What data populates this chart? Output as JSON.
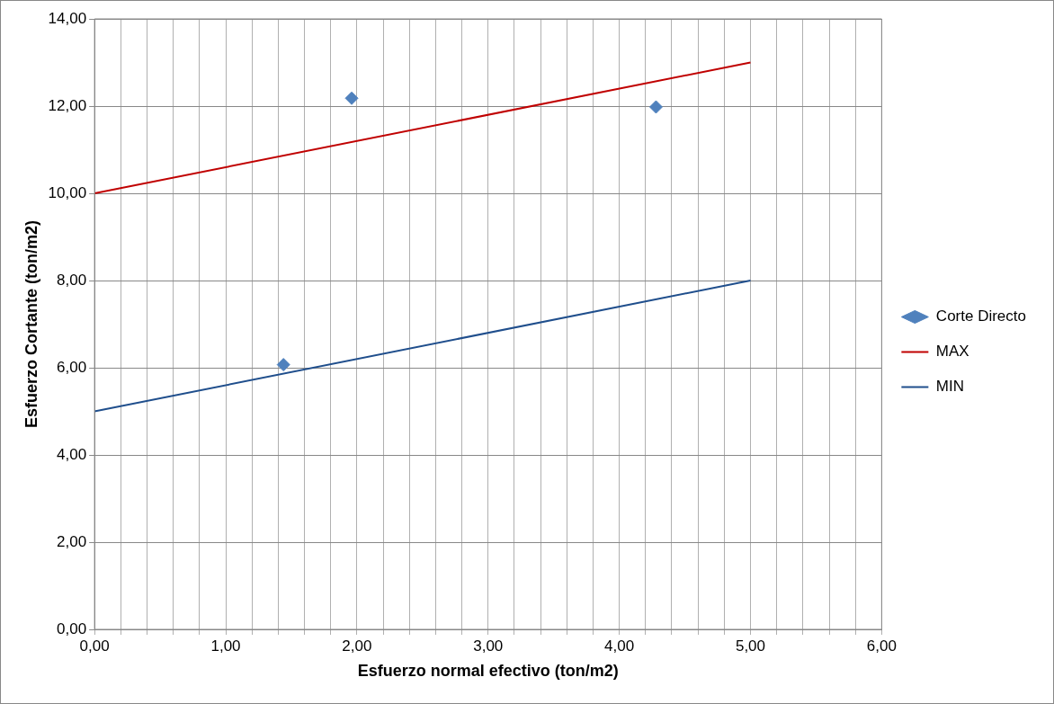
{
  "chart_data": {
    "type": "scatter",
    "xlabel": "Esfuerzo normal efectivo (ton/m2)",
    "ylabel": "Esfuerzo Cortante (ton/m2)",
    "xlim": [
      0,
      6
    ],
    "ylim": [
      0,
      14
    ],
    "xticks": [
      {
        "value": 0,
        "label": "0,00"
      },
      {
        "value": 0.2,
        "label": null
      },
      {
        "value": 0.4,
        "label": null
      },
      {
        "value": 0.6,
        "label": null
      },
      {
        "value": 0.8,
        "label": null
      },
      {
        "value": 1,
        "label": "1,00"
      },
      {
        "value": 1.2,
        "label": null
      },
      {
        "value": 1.4,
        "label": null
      },
      {
        "value": 1.6,
        "label": null
      },
      {
        "value": 1.8,
        "label": null
      },
      {
        "value": 2,
        "label": "2,00"
      },
      {
        "value": 2.2,
        "label": null
      },
      {
        "value": 2.4,
        "label": null
      },
      {
        "value": 2.6,
        "label": null
      },
      {
        "value": 2.8,
        "label": null
      },
      {
        "value": 3,
        "label": "3,00"
      },
      {
        "value": 3.2,
        "label": null
      },
      {
        "value": 3.4,
        "label": null
      },
      {
        "value": 3.6,
        "label": null
      },
      {
        "value": 3.8,
        "label": null
      },
      {
        "value": 4,
        "label": "4,00"
      },
      {
        "value": 4.2,
        "label": null
      },
      {
        "value": 4.4,
        "label": null
      },
      {
        "value": 4.6,
        "label": null
      },
      {
        "value": 4.8,
        "label": null
      },
      {
        "value": 5,
        "label": "5,00"
      },
      {
        "value": 5.2,
        "label": null
      },
      {
        "value": 5.4,
        "label": null
      },
      {
        "value": 5.6,
        "label": null
      },
      {
        "value": 5.8,
        "label": null
      },
      {
        "value": 6,
        "label": "6,00"
      }
    ],
    "yticks": [
      {
        "value": 0,
        "label": "0,00"
      },
      {
        "value": 2,
        "label": "2,00"
      },
      {
        "value": 4,
        "label": "4,00"
      },
      {
        "value": 6,
        "label": "6,00"
      },
      {
        "value": 8,
        "label": "8,00"
      },
      {
        "value": 10,
        "label": "10,00"
      },
      {
        "value": 12,
        "label": "12,00"
      },
      {
        "value": 14,
        "label": "14,00"
      }
    ],
    "grid": true,
    "legend": "right",
    "series": [
      {
        "name": "Corte Directo",
        "type": "scatter",
        "marker": "diamond",
        "color": "#4f81bd",
        "x": [
          1.96,
          4.28,
          1.44
        ],
        "values": [
          12.18,
          11.98,
          6.07
        ]
      },
      {
        "name": "MAX",
        "type": "line",
        "marker": "none",
        "color": "#c00000",
        "x": [
          0,
          5
        ],
        "values": [
          10,
          13
        ]
      },
      {
        "name": "MIN",
        "type": "line",
        "marker": "none",
        "color": "#1f4e8c",
        "x": [
          0,
          5
        ],
        "values": [
          5,
          8
        ]
      }
    ]
  }
}
